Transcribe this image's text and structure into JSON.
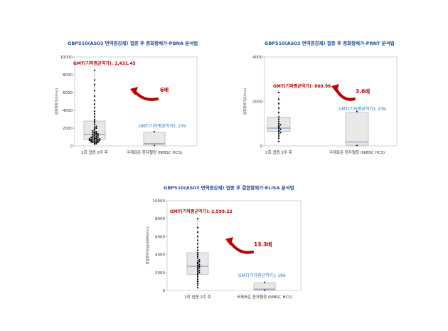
{
  "chart_data": [
    {
      "type": "box",
      "title": "GBP510(AS03 면역증강제) 접종 후 중화항체가-PBNA 분석법",
      "ylabel": "중화항체가(IU/mL)",
      "ylim": [
        0,
        10000
      ],
      "yticks": [
        0,
        2000,
        4000,
        6000,
        8000,
        10000
      ],
      "categories": [
        "2회 접종 2주 후",
        "국제표준 환자혈청 (NIBSC HCS)"
      ],
      "boxes": [
        {
          "q1": 700,
          "median": 1300,
          "q3": 2800,
          "min": 200,
          "max": 8500
        },
        {
          "q1": 100,
          "median": 250,
          "q3": 1550,
          "min": 50,
          "max": 1600
        }
      ],
      "gmt_labels": [
        "GMT(기하평균역가): 1,431.45",
        "GMT(기하평균역가): 239"
      ],
      "fold_label": "6배",
      "points": [
        200,
        250,
        300,
        350,
        400,
        420,
        450,
        480,
        500,
        520,
        550,
        580,
        600,
        620,
        650,
        680,
        700,
        720,
        750,
        780,
        800,
        830,
        860,
        900,
        930,
        960,
        1000,
        1050,
        1100,
        1150,
        1200,
        1250,
        1300,
        1350,
        1400,
        1450,
        1500,
        1550,
        1600,
        1700,
        1800,
        1900,
        2000,
        2100,
        2200,
        2400,
        2600,
        2800,
        3000,
        3300,
        3600,
        3900,
        4300,
        4700,
        5100,
        5600,
        6200,
        6900,
        7400,
        8500
      ]
    },
    {
      "type": "box",
      "title": "GBP510(AS03 면역증강제) 접종 후 중화항체가-PRNT 분석법",
      "ylabel": "중화항체가(IU/mL)",
      "ylim": [
        0,
        4000
      ],
      "yticks": [
        0,
        2000,
        4000
      ],
      "categories": [
        "2회 접종 2주 후",
        "국제표준 환자혈청 (NIBSC HCS)"
      ],
      "boxes": [
        {
          "q1": 650,
          "median": 800,
          "q3": 1300,
          "min": 200,
          "max": 2400
        },
        {
          "q1": 30,
          "median": 180,
          "q3": 1500,
          "min": 20,
          "max": 1550
        }
      ],
      "gmt_labels": [
        "GMT(기하평균역가): 860.96",
        "GMT(기하평균역가): 239"
      ],
      "fold_label": "3.6배",
      "points": [
        200,
        350,
        450,
        550,
        600,
        650,
        700,
        750,
        800,
        850,
        900,
        950,
        1000,
        1100,
        1200,
        1300,
        1500,
        1700,
        1900,
        2100,
        2400
      ]
    },
    {
      "type": "box",
      "title": "GBP510(AS03 면역증강제) 접종 후 결합항체가-ELISA 분석법",
      "ylabel": "결합항체가(IgG)(BAU/mL)",
      "ylim": [
        0,
        10000
      ],
      "yticks": [
        0,
        2000,
        4000,
        6000,
        8000,
        10000
      ],
      "categories": [
        "2회 접종 2주 후",
        "국제표준 환자혈청 (NIBSC HCS)"
      ],
      "boxes": [
        {
          "q1": 1800,
          "median": 2700,
          "q3": 4200,
          "min": 300,
          "max": 8000
        },
        {
          "q1": 50,
          "median": 150,
          "q3": 850,
          "min": 30,
          "max": 900
        }
      ],
      "gmt_labels": [
        "GMT(기하평균역가): 2,599.22",
        "GMT(기하평균역가): 196"
      ],
      "fold_label": "13.3배",
      "points": [
        300,
        600,
        800,
        1000,
        1200,
        1400,
        1600,
        1800,
        1900,
        2000,
        2100,
        2200,
        2300,
        2400,
        2500,
        2600,
        2700,
        2800,
        2900,
        3000,
        3100,
        3200,
        3300,
        3400,
        3600,
        3800,
        4000,
        4200,
        4500,
        4800,
        5200,
        5600,
        6000,
        6500,
        7000,
        8000
      ]
    }
  ],
  "colors": {
    "title": "#1f4e9c",
    "gmt_vaccine": "#c00000",
    "gmt_reference": "#2e74b5",
    "arrow": "#c00000",
    "box_fill": "#e8e8e8",
    "box_stroke": "#b0b0b0",
    "median": "#4a6fa5",
    "point": "#000000"
  }
}
